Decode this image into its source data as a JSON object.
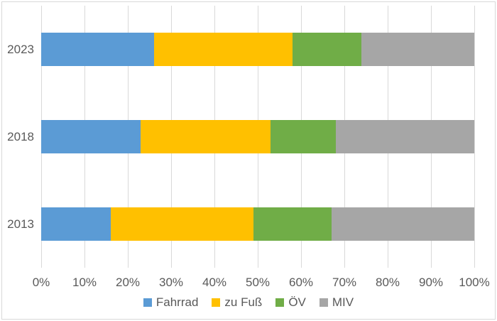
{
  "chart_data": {
    "type": "bar",
    "orientation": "horizontal",
    "stacked": true,
    "stack_total": 100,
    "title": "",
    "xlabel": "",
    "ylabel": "",
    "categories": [
      "2023",
      "2018",
      "2013"
    ],
    "series": [
      {
        "name": "Fahrrad",
        "color": "#5B9BD5",
        "values": [
          26,
          23,
          16
        ]
      },
      {
        "name": "zu Fuß",
        "color": "#FFC000",
        "values": [
          32,
          30,
          33
        ]
      },
      {
        "name": "ÖV",
        "color": "#70AD47",
        "values": [
          16,
          15,
          18
        ]
      },
      {
        "name": "MIV",
        "color": "#A6A6A6",
        "values": [
          26,
          32,
          33
        ]
      }
    ],
    "x_ticks": [
      "0%",
      "10%",
      "20%",
      "30%",
      "40%",
      "50%",
      "60%",
      "70%",
      "80%",
      "90%",
      "100%"
    ],
    "xlim": [
      0,
      100
    ],
    "grid": "vertical",
    "legend_position": "bottom",
    "legend_entries": [
      "Fahrrad",
      "zu Fuß",
      "ÖV",
      "MIV"
    ]
  },
  "colors": {
    "gridline": "#D9D9D9",
    "chart_border": "#D9D9D9",
    "label_text": "#595959",
    "background": "#FFFFFF",
    "bar_blue": "#5B9BD5",
    "bar_yellow": "#FFC000",
    "bar_green": "#70AD47",
    "bar_gray": "#A6A6A6"
  }
}
